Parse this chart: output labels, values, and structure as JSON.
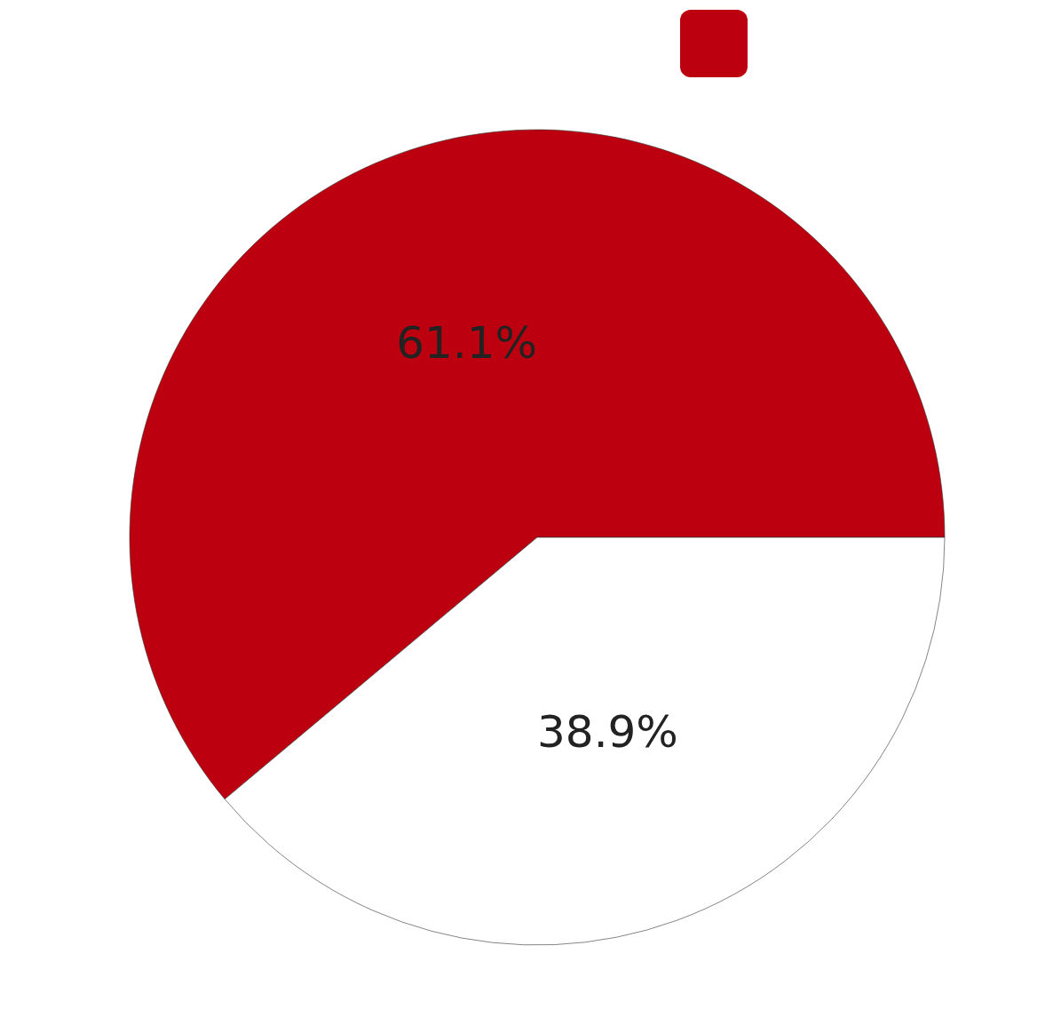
{
  "chart_data": {
    "type": "pie",
    "categories": [
      null,
      null
    ],
    "values": [
      61.1,
      38.9
    ],
    "colors": [
      "#bc000f",
      "#ffffff"
    ],
    "value_labels": [
      "61.1%",
      "38.9%"
    ]
  }
}
